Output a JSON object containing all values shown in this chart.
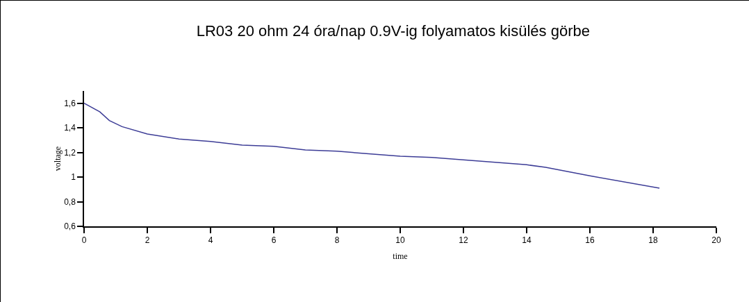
{
  "chart_data": {
    "type": "line",
    "title": "LR03 20 ohm 24 óra/nap 0.9V-ig folyamatos kisülés görbe",
    "xlabel": "time",
    "ylabel": "voltage",
    "series": [
      {
        "color": "#3c3c96",
        "x": [
          0,
          0.5,
          0.8,
          1.2,
          2,
          3,
          4,
          5,
          6,
          7,
          8,
          9,
          10,
          11,
          12,
          13,
          14,
          14.6,
          16,
          18.2
        ],
        "values": [
          1.6,
          1.53,
          1.46,
          1.41,
          1.35,
          1.31,
          1.29,
          1.26,
          1.25,
          1.22,
          1.21,
          1.19,
          1.17,
          1.16,
          1.14,
          1.12,
          1.1,
          1.08,
          1.01,
          0.91
        ]
      }
    ],
    "xlim": [
      0,
      20
    ],
    "xticks": [
      0,
      2,
      4,
      6,
      8,
      10,
      12,
      14,
      16,
      18,
      20
    ],
    "ylim": [
      0.6,
      1.7
    ],
    "yticks": [
      {
        "value": 0.6,
        "label": "0,6"
      },
      {
        "value": 0.8,
        "label": "0,8"
      },
      1,
      {
        "value": 1.2,
        "label": "1,2"
      },
      {
        "value": 1.4,
        "label": "1,4"
      },
      {
        "value": 1.6,
        "label": "1,6"
      }
    ],
    "grid": false,
    "marker": "none",
    "line_style": "solid"
  }
}
